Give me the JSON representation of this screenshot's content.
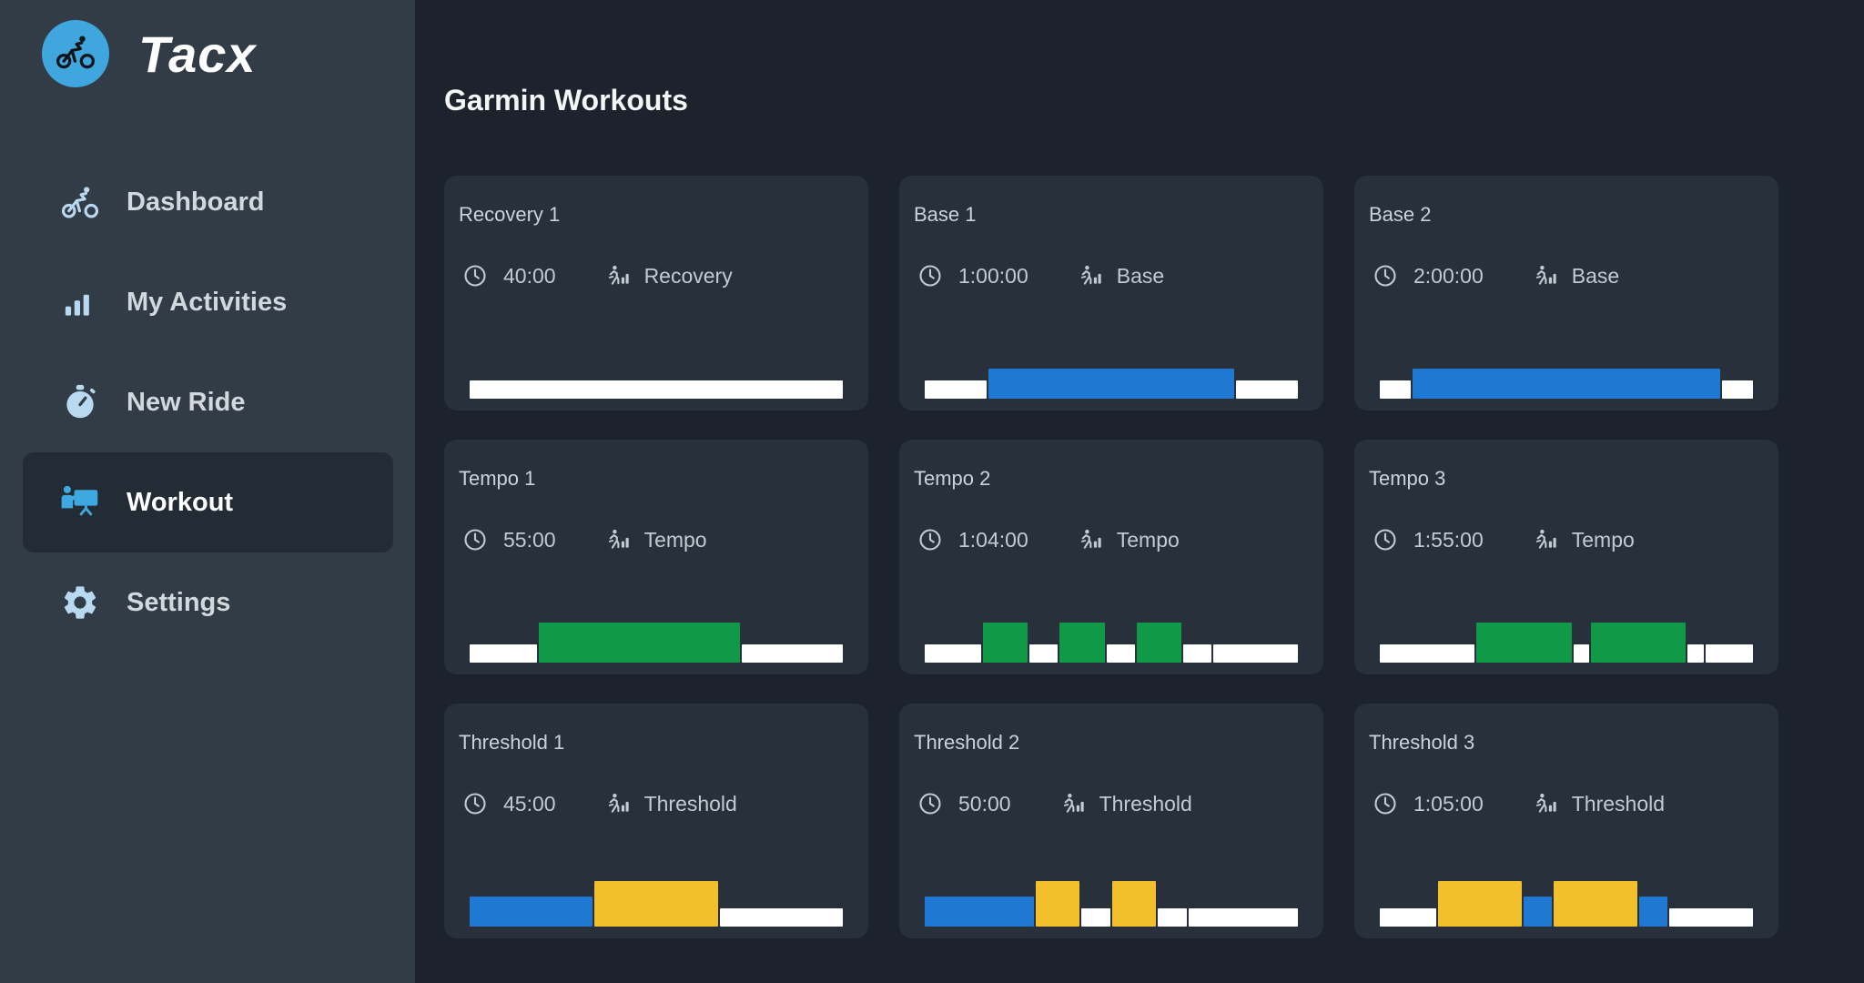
{
  "app": {
    "brand": "Tacx"
  },
  "sidebar": {
    "items": [
      {
        "label": "Dashboard",
        "icon": "cyclist-icon",
        "active": false
      },
      {
        "label": "My Activities",
        "icon": "activity-bars-icon",
        "active": false
      },
      {
        "label": "New Ride",
        "icon": "stopwatch-icon",
        "active": false
      },
      {
        "label": "Workout",
        "icon": "training-board-icon",
        "active": true
      },
      {
        "label": "Settings",
        "icon": "gear-icon",
        "active": false
      }
    ]
  },
  "main": {
    "title": "Garmin Workouts"
  },
  "palette": {
    "white": "#ffffff",
    "blue": "#1f78d2",
    "green": "#109a47",
    "yellow": "#f3c02c",
    "accent": "#3ea8e0"
  },
  "zone_heights_pct": {
    "white": 40,
    "blue": 66,
    "green": 88,
    "yellow": 100
  },
  "workouts": [
    {
      "title": "Recovery 1",
      "duration": "40:00",
      "type": "Recovery",
      "segments": [
        {
          "color": "white",
          "minutes": 40
        }
      ]
    },
    {
      "title": "Base 1",
      "duration": "1:00:00",
      "type": "Base",
      "segments": [
        {
          "color": "white",
          "minutes": 10
        },
        {
          "color": "blue",
          "minutes": 40
        },
        {
          "color": "white",
          "minutes": 10
        }
      ]
    },
    {
      "title": "Base 2",
      "duration": "2:00:00",
      "type": "Base",
      "segments": [
        {
          "color": "white",
          "minutes": 10
        },
        {
          "color": "blue",
          "minutes": 100
        },
        {
          "color": "white",
          "minutes": 10
        }
      ]
    },
    {
      "title": "Tempo 1",
      "duration": "55:00",
      "type": "Tempo",
      "segments": [
        {
          "color": "white",
          "minutes": 10
        },
        {
          "color": "green",
          "minutes": 30
        },
        {
          "color": "white",
          "minutes": 15
        }
      ]
    },
    {
      "title": "Tempo 2",
      "duration": "1:04:00",
      "type": "Tempo",
      "segments": [
        {
          "color": "white",
          "minutes": 10
        },
        {
          "color": "green",
          "minutes": 8
        },
        {
          "color": "white",
          "minutes": 5
        },
        {
          "color": "green",
          "minutes": 8
        },
        {
          "color": "white",
          "minutes": 5
        },
        {
          "color": "green",
          "minutes": 8
        },
        {
          "color": "white",
          "minutes": 5
        },
        {
          "color": "white",
          "minutes": 15
        }
      ]
    },
    {
      "title": "Tempo 3",
      "duration": "1:55:00",
      "type": "Tempo",
      "segments": [
        {
          "color": "white",
          "minutes": 30
        },
        {
          "color": "green",
          "minutes": 30
        },
        {
          "color": "white",
          "minutes": 5
        },
        {
          "color": "green",
          "minutes": 30
        },
        {
          "color": "white",
          "minutes": 5
        },
        {
          "color": "white",
          "minutes": 15
        }
      ]
    },
    {
      "title": "Threshold 1",
      "duration": "45:00",
      "type": "Threshold",
      "segments": [
        {
          "color": "blue",
          "minutes": 15
        },
        {
          "color": "yellow",
          "minutes": 15
        },
        {
          "color": "white",
          "minutes": 15
        }
      ]
    },
    {
      "title": "Threshold 2",
      "duration": "50:00",
      "type": "Threshold",
      "segments": [
        {
          "color": "blue",
          "minutes": 15
        },
        {
          "color": "yellow",
          "minutes": 6
        },
        {
          "color": "white",
          "minutes": 4
        },
        {
          "color": "yellow",
          "minutes": 6
        },
        {
          "color": "white",
          "minutes": 4
        },
        {
          "color": "white",
          "minutes": 15
        }
      ]
    },
    {
      "title": "Threshold 3",
      "duration": "1:05:00",
      "type": "Threshold",
      "segments": [
        {
          "color": "white",
          "minutes": 10
        },
        {
          "color": "yellow",
          "minutes": 15
        },
        {
          "color": "blue",
          "minutes": 5
        },
        {
          "color": "yellow",
          "minutes": 15
        },
        {
          "color": "blue",
          "minutes": 5
        },
        {
          "color": "white",
          "minutes": 15
        }
      ]
    }
  ]
}
